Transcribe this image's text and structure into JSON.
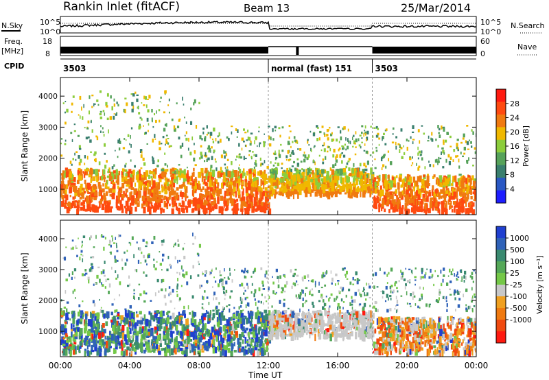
{
  "header": {
    "title": "Rankin Inlet (fitACF)",
    "beam": "Beam 13",
    "date": "25/Mar/2014"
  },
  "strip": {
    "nsky_label": "N.Sky",
    "nsky_ticks": [
      "10^5",
      "10^0"
    ],
    "nsearch_ticks": [
      "10^5",
      "10^0"
    ],
    "nsearch_label": "N.Search",
    "freq_label": "Freq.",
    "freq_unit": "[MHz]",
    "freq_ticks": [
      "18",
      "8"
    ],
    "nave_ticks": [
      "60",
      "0"
    ],
    "nave_label": "Nave",
    "cpid_label": "CPID",
    "cpid_segments": [
      {
        "label": "3503",
        "start_hour": 0,
        "end_hour": 12
      },
      {
        "label": "normal (fast) 151",
        "start_hour": 12,
        "end_hour": 18
      },
      {
        "label": "3503",
        "start_hour": 18,
        "end_hour": 24
      }
    ]
  },
  "x_axis": {
    "title": "Time UT",
    "tick_labels": [
      "00:00",
      "04:00",
      "08:00",
      "12:00",
      "16:00",
      "20:00",
      "00:00"
    ],
    "range_hours": [
      0,
      24
    ]
  },
  "chart_data": [
    {
      "type": "heatmap",
      "ylabel": "Slant Range [km]",
      "ylim": [
        180,
        4600
      ],
      "yticks": [
        1000,
        2000,
        3000,
        4000
      ],
      "colorbar_title": "Power [dB]",
      "colorbar_ticks": [
        "4",
        "8",
        "12",
        "16",
        "20",
        "24",
        "28"
      ],
      "colorbar_colors": [
        "#1e1eff",
        "#2a58c4",
        "#3a7f6e",
        "#56a25a",
        "#8ccd3c",
        "#f0b800",
        "#f07a10",
        "#ff4a10",
        "#ff1a10"
      ],
      "regions": [
        {
          "t_start": 0.0,
          "t_end": 12.0,
          "r_low": 350,
          "r_high": 1700,
          "level": 26
        },
        {
          "t_start": 12.0,
          "t_end": 18.0,
          "r_low": 900,
          "r_high": 1700,
          "level": 22
        },
        {
          "t_start": 18.0,
          "t_end": 24.0,
          "r_low": 350,
          "r_high": 1500,
          "level": 26
        }
      ]
    },
    {
      "type": "heatmap",
      "ylabel": "Slant Range [km]",
      "ylim": [
        180,
        4600
      ],
      "yticks": [
        1000,
        2000,
        3000,
        4000
      ],
      "colorbar_title": "Velocity [m s⁻¹]",
      "colorbar_ticks": [
        "1000",
        "500",
        "100",
        "25",
        "-25",
        "-100",
        "-500",
        "-1000"
      ],
      "colorbar_colors": [
        "#2040d0",
        "#2f62b8",
        "#3a8a70",
        "#55a858",
        "#75c848",
        "#c8c8c8",
        "#f0a020",
        "#f07a10",
        "#f04a10",
        "#ff1a10"
      ],
      "regions": [
        {
          "t_start": 0.0,
          "t_end": 12.0,
          "r_low": 350,
          "r_high": 1700,
          "level": 100
        },
        {
          "t_start": 12.0,
          "t_end": 18.0,
          "r_low": 900,
          "r_high": 1700,
          "level": 0
        },
        {
          "t_start": 18.0,
          "t_end": 24.0,
          "r_low": 350,
          "r_high": 1500,
          "level": -100
        }
      ]
    }
  ]
}
